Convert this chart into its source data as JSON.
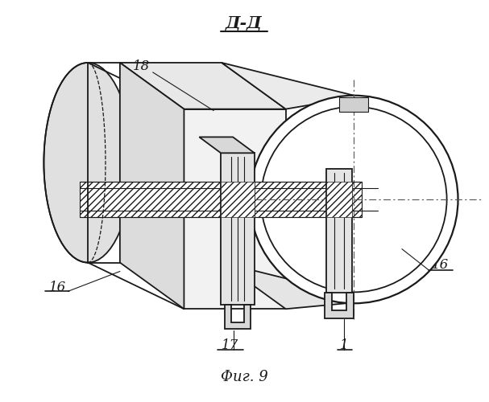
{
  "title": "Д-Д",
  "fig_label": "Фиг. 9",
  "bg_color": "#ffffff",
  "line_color": "#1a1a1a",
  "figsize": [
    6.07,
    5.0
  ],
  "dpi": 100
}
